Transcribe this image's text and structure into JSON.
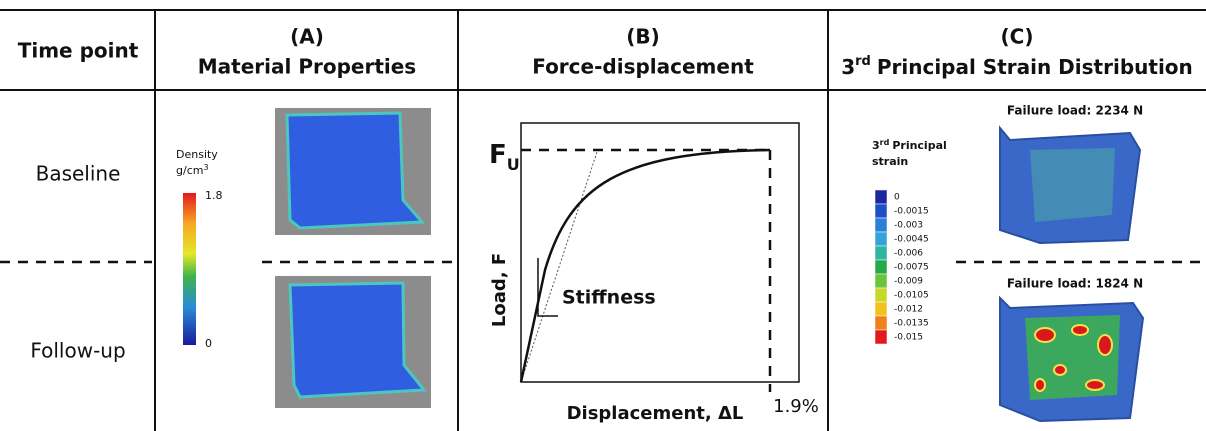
{
  "header": {
    "time_point": "Time point",
    "columns": [
      {
        "letter": "(A)",
        "title": "Material Properties"
      },
      {
        "letter": "(B)",
        "title": "Force-displacement"
      },
      {
        "letter": "(C)",
        "title_number": "3",
        "title_suffix": "rd",
        "title_rest": "Principal Strain Distribution"
      }
    ]
  },
  "rows": [
    "Baseline",
    "Follow-up"
  ],
  "density_legend": {
    "title": "Density",
    "unit_base": "g/cm",
    "unit_power": "3",
    "max": "1.8",
    "min": "0"
  },
  "graph": {
    "force_symbol": "F",
    "force_subscript": "U",
    "y_label": "Load, F",
    "stiffness": "Stiffness",
    "x_label": "Displacement, ΔL",
    "strain_label": "1.9%"
  },
  "strain_legend": {
    "title_number": "3",
    "title_suffix": "rd",
    "title_rest": "Principal",
    "title_line2": "strain",
    "labels": [
      "0",
      "-0.0015",
      "-0.003",
      "-0.0045",
      "-0.006",
      "-0.0075",
      "-0.009",
      "-0.0105",
      "-0.012",
      "-0.0135",
      "-0.015"
    ]
  },
  "failure_loads": [
    "Failure load: 2234 N",
    "Failure load: 1824 N"
  ]
}
